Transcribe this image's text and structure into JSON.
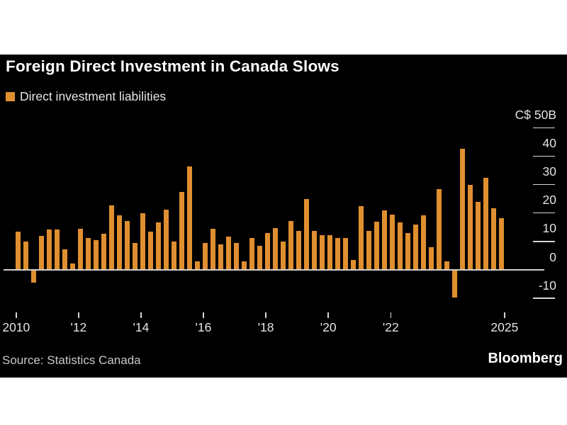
{
  "title": "Foreign Direct Investment in Canada Slows",
  "legend": {
    "label": "Direct investment liabilities"
  },
  "source": "Source: Statistics Canada",
  "brand": "Bloomberg",
  "colors": {
    "page_bg": "#FFFFFF",
    "panel_bg": "#000000",
    "bar": "#E08F30",
    "title_text": "#FFFFFF",
    "axis_text": "#E3E3E3",
    "tick_line": "#D6D6D6",
    "axis_line": "#CFCFCF",
    "source_text": "#C9C9C9",
    "brand_text": "#FFFFFF"
  },
  "y_axis": {
    "unit_top_label": "C$ 50B",
    "ticks": [
      {
        "label": "C$ 50B",
        "value": 50
      },
      {
        "label": "40",
        "value": 40
      },
      {
        "label": "30",
        "value": 30
      },
      {
        "label": "20",
        "value": 20
      },
      {
        "label": "10",
        "value": 10
      },
      {
        "label": "0",
        "value": 0
      },
      {
        "label": "-10",
        "value": -10
      }
    ]
  },
  "x_axis": {
    "ticks": [
      {
        "label": "2010",
        "year": 2010
      },
      {
        "label": "'12",
        "year": 2012
      },
      {
        "label": "'14",
        "year": 2014
      },
      {
        "label": "'16",
        "year": 2016
      },
      {
        "label": "'18",
        "year": 2018
      },
      {
        "label": "'20",
        "year": 2020
      },
      {
        "label": "'22",
        "year": 2022
      },
      {
        "label": "2025",
        "year": 2025
      }
    ]
  },
  "chart_data": {
    "type": "bar",
    "title": "Foreign Direct Investment in Canada Slows",
    "series_name": "Direct investment liabilities",
    "unit": "C$ billions",
    "ylabel": "C$ 50B",
    "ylim": [
      -10,
      50
    ],
    "grid": "right-edge tick dashes, labels above ticks",
    "legend_position": "top-left",
    "categories": [
      "2010 Q1",
      "2010 Q2",
      "2010 Q3",
      "2010 Q4",
      "2011 Q1",
      "2011 Q2",
      "2011 Q3",
      "2011 Q4",
      "2012 Q1",
      "2012 Q2",
      "2012 Q3",
      "2012 Q4",
      "2013 Q1",
      "2013 Q2",
      "2013 Q3",
      "2013 Q4",
      "2014 Q1",
      "2014 Q2",
      "2014 Q3",
      "2014 Q4",
      "2015 Q1",
      "2015 Q2",
      "2015 Q3",
      "2015 Q4",
      "2016 Q1",
      "2016 Q2",
      "2016 Q3",
      "2016 Q4",
      "2017 Q1",
      "2017 Q2",
      "2017 Q3",
      "2017 Q4",
      "2018 Q1",
      "2018 Q2",
      "2018 Q3",
      "2018 Q4",
      "2019 Q1",
      "2019 Q2",
      "2019 Q3",
      "2019 Q4",
      "2020 Q1",
      "2020 Q2",
      "2020 Q3",
      "2020 Q4",
      "2021 Q1",
      "2021 Q2",
      "2021 Q3",
      "2021 Q4",
      "2022 Q1",
      "2022 Q2",
      "2022 Q3",
      "2022 Q4",
      "2023 Q1",
      "2023 Q2",
      "2023 Q3",
      "2023 Q4",
      "2024 Q1",
      "2024 Q2",
      "2024 Q3",
      "2024 Q4",
      "2025 Q1",
      "2025 Q2",
      "2025 Q3"
    ],
    "values": [
      13.4,
      10.0,
      -4.5,
      11.9,
      14.1,
      14.1,
      7.3,
      2.3,
      14.5,
      11.2,
      10.4,
      12.8,
      22.6,
      19.3,
      17.2,
      9.4,
      20.0,
      13.4,
      16.6,
      21.1,
      10.0,
      27.3,
      36.4,
      2.9,
      9.5,
      14.4,
      9.0,
      11.8,
      9.6,
      2.9,
      11.3,
      8.5,
      12.9,
      14.6,
      10.0,
      17.2,
      13.8,
      24.9,
      13.6,
      12.1,
      12.1,
      11.1,
      11.2,
      3.4,
      22.4,
      13.8,
      16.9,
      21.0,
      19.4,
      16.6,
      13.0,
      16.0,
      19.2,
      8.1,
      28.5,
      3.1,
      -9.8,
      42.7,
      29.8,
      24.0,
      32.4,
      21.8,
      18.1
    ]
  }
}
